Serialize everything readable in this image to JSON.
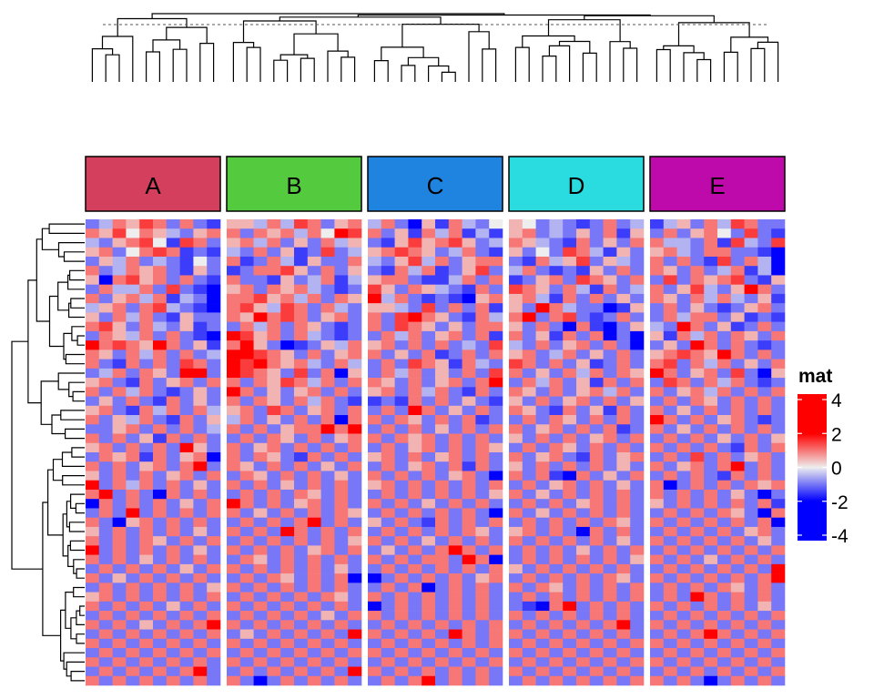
{
  "chart_data": {
    "type": "heatmap",
    "title": "",
    "legend": {
      "title": "mat",
      "placement": "right",
      "ticks": [
        4,
        2,
        0,
        -2,
        -4
      ],
      "tick_labels": [
        "4",
        "2",
        "0",
        "-2",
        "-4"
      ],
      "color_stops": [
        {
          "value": -2,
          "color": "#0000FF"
        },
        {
          "value": 0,
          "color": "#EEEEEE"
        },
        {
          "value": 2,
          "color": "#FF0000"
        }
      ]
    },
    "column_slices": [
      {
        "label": "A",
        "color": "#D33F5C"
      },
      {
        "label": "B",
        "color": "#54CB3F"
      },
      {
        "label": "C",
        "color": "#1F83E0"
      },
      {
        "label": "D",
        "color": "#2ADBE0"
      },
      {
        "label": "E",
        "color": "#BE0AAB"
      }
    ],
    "n_rows": 50,
    "columns_per_slice": 10,
    "value_encoding": "each character a..q = -4..4 in steps of 0.5 (i = 0)",
    "rows": [
      "ghkjlkgkgf jjhkhlkgjk hkgcjfkhgi jighgfgkgh fhjgkhlkgg",
      "kjlikjhgjk kgkjkhkiml kgjfkhkfhf jkghgjgkfj gkgjkiglgf",
      "hgjkliflkg jkhkgjgkhj gfjljkljgh kjhgfkgjgk khhgkflhgl",
      "jkgiklkfgf hgkgjfglgh jklkjghkgf jgiglkhfjg jkhgkkggfe",
      "gjhkghgfig kfgkhfjggk hgjlhkgjkk gfkhjlgjhg kgkgflgkhc",
      "kghkjkgfjg fgkkljgkgj gfkhkfgjlg hkgfgfjgkg kjgkghkfhe",
      "jdkljkgkgf kggfjghkfh jkkgffhkgk fgjkglkjgk glgkjklgfj",
      "gkhhkglgfe jkgkjkhgfg ljgkjhgfkg lkjgkhfkgh kgjlhgjmkg",
      "kgjkhkfhge kkljkhkgkj mhkgfgfdjk jkhfkgkgjg kjgkhkhgjf",
      "hjkgklhgfe kljhlkgkhg jjhglgkgkf jgmkhggcfj gkgjgfgjkg",
      "jgkhkgfjgg kjmklkgjkg kglmkjgfkh kngklgfgkg gkhkkgjfgf",
      "kljgkhgjfg gkhkgkjgfg kglkjgjgkk jgkgdkfdgj hgmkgjfgkg",
      "gkjhkgkgfe mljkgkhgfg gkhkgjkgkf kgjfkgkdgd jfkhkgkjgk",
      "oklkjmkgjf kmjgcfgjhk jkgkgkghgl hgkgjkgkgc gjgmkgkgfg",
      "kjgkhkgkgh mmlkjgkgjk kgjgkfgkgk jkghkgjgkg jklkjmkgkg",
      "kgfkgkglkg nlmkjkhgkh gkglkjfkhg lkgkgjfgkg klgkhkgjgk",
      "ghkgkjgnmg mlkjglgkdj gkhkgjgkgl kgjgkhkgkj mkgjkglgdj",
      "jkgfkgjkgk kgkjlkhkgk kjgkgjkgkn gkhkgjfkgk glkgkhkgfg",
      "kgkhkgfgjg mkgjgjkgkg jkgkhkgfkg kjgkgjkhkg kgjkhkgkgk",
      "gjgkgfkgjg kgkjgkhkgf fgfkgkgjgf jgkgjkgkgj gkgkjgkgkg",
      "jkgfkhkgkh jkglkgjkgk gkgnkgjgkg kjgfkgjfkg kgjgkgkgkg",
      "kgjhkgfkgj hkgjgkgkdk kgkjgkgkfg gkgkjgkgkg okgkgjkgfg",
      "ggjkgkgkgh kgkgjkkmkm gkgkgjgkgk kgjkgkgkfg kgjgkgkgkg",
      "kgkgjfkgkg gkgkjgkgjk kgkjkgkgkg jgkgkgjkgk gkgkgjgkgj",
      "jkgkgkgmjg kgjkgkgkgk gkgjkgkgkj gkgkjgkgkg kgkgkgfkgk",
      "gkjkfkgjke kgkjgfkgkg jkgkgjkgkg kgjkgfkgjk gkglgkgjkg",
      "kgkgjkgkog kjgkgkgjgk gkgjkgkfkg jgkgkgkgjg kgjkgkmgkg",
      "jgkgkgjkgk gkjgkgkgjg kgkgkgjkgd kgkfckgjgk gkgkgfkgkg",
      "mgkhkgkgjg kgkgjgkgkg jkgkgkgkgk gkgjkgkgjg kdgkgkgkjk",
      "kmgkgdkgkg gkgkgkjgkg gkgkgkgkgj kgjgkgkgkg kgkgkgjgdg",
      "dkgkgkgjgk mkgkgjkgkg kgkgjgkgkg gkgkgjkgkg jgkgkgkgkf",
      "gkgmgkgkgk kgjgkgkgkj gkgkgkgkgd kgjgkgkgkg gkgkgkjgdk",
      "kgcjkgkgkg gkgkgkmgkg jgkgfkgkgk gkgkgkgkjg kgkgkgkgkd",
      "jgkgkgkgjg kgkgnkgkgk gkgkgkgkjg jkgkgdkgkg gkgkgkgjkg",
      "kgkgkjgkgk gkgkgkgkgj kgkgjgkgkg kgkgkgkgjg kgkgkgkgjg",
      "mgkgkgkgjg kgkgkgjkgk gjgkgkmkgk gkgkgjgkgk gkgkgkgkgk",
      "kgkgjgkgkg gkjgkgkgkg kgkgkkgmkc gkgkgkgkgj kgkgjgkgkg",
      "gkgkgkgjgk kgkgkgkgjg gkgkgkgkgk jgkgkgkgkg gkgkgkgkgn",
      "kgjgkgkgkg gkgkjgkgkd dgkgkgkgjk gkgkgkgkjg kgkgkgkgko",
      "gkgkgkgkgj kgkgkgkgkg gkgkdgkgkg kgkjgkgkgk gkgkgkjgkg",
      "jkgkgkgkgk gkgkgkgkjg kgkgkgkgkg gkgkgkgkgk gkgmkgkgkg",
      "kgkgkgjgkg kgkgkgkgkg dgkgkgkgkg gfdkmgkgkg kgkgkgkgjg",
      "gkgkgkgkgk gkgkgkgjgk kgkgkgkgkg kgkgkgkgkg gkgkgkgkgk",
      "kgkgjgkgkm kgkgkgkgkg gkgkgkgkgk gkgkgkgkmg kgkgkgkgkg",
      "gkgkgkgkgk gjgkgkgkgm kgkgkgmkgk kgkgkgkgkg gkgkmkgkgk",
      "kgkgkgkgkg kgkgkgkgkg gkgkgkgkgk gkgkgkgkgk kgkgkgkgkg",
      "gkgkgkgkgk gkgkgkgkgk kgkgkgkgkg kgkgkgkgkg gkgkgkgkgk",
      "kgkgkgkgkg kgkgkgkgkg gkgkgkgkgk gkgkgkgkgk kgkgkgkgkg",
      "gkgkgkgkmg gkgkgkgkgm kgkgkgkgkg kgkgkgkgkg gkgkgkgkgk",
      "kgkgkgkgkg kgdgkgkgkg gkgkmgkgkg gkgkgkgkgk kgkgdgkgkg"
    ]
  }
}
